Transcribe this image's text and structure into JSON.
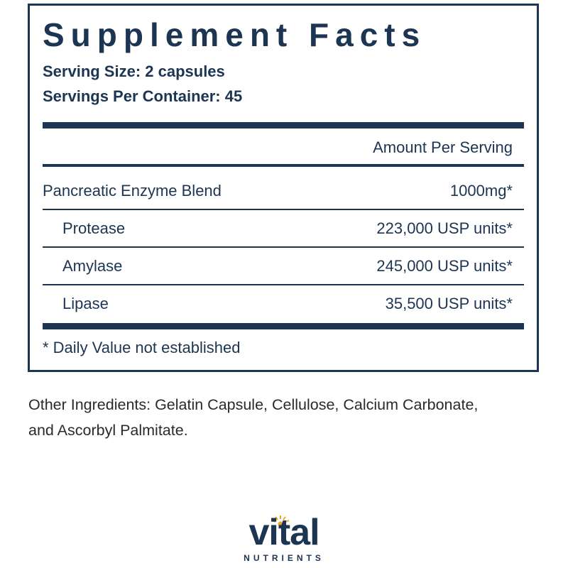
{
  "header": {
    "title": "Supplement Facts",
    "serving_size": "Serving Size: 2 capsules",
    "servings_per_container": "Servings Per Container: 45"
  },
  "table": {
    "column_header": "Amount Per Serving",
    "rows": [
      [
        "Pancreatic Enzyme Blend",
        "1000mg*"
      ],
      [
        "Protease",
        "223,000 USP units*"
      ],
      [
        "Amylase",
        "245,000 USP units*"
      ],
      [
        "Lipase",
        "35,500 USP units*"
      ]
    ],
    "footnote": "* Daily Value not established"
  },
  "other_ingredients": [
    "Other Ingredients: Gelatin Capsule, Cellulose, Calcium Carbonate,",
    "and Ascorbyl Palmitate."
  ],
  "logo": {
    "name": "vital",
    "tagline": "NUTRIENTS"
  }
}
